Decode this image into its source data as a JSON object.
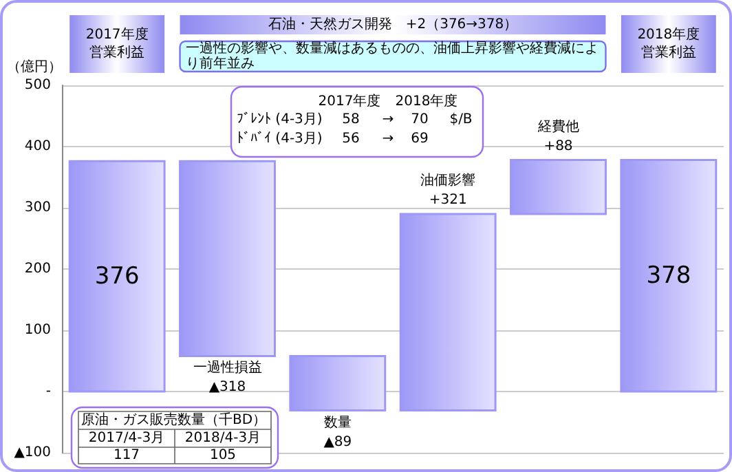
{
  "chart_data": {
    "type": "bar",
    "title": "石油・天然ガス開発　+2（376→378）",
    "subtitle": "一過性の影響や、数量減はあるものの、油価上昇影響や経費減により前年並み",
    "ylabel": "（億円）",
    "categories": [
      "2017年度営業利益",
      "一過性損益",
      "数量",
      "油価影響",
      "経費他",
      "2018年度営業利益"
    ],
    "values": [
      376,
      -318,
      -89,
      321,
      88,
      378
    ],
    "base": [
      0,
      376,
      58,
      -31,
      290,
      0
    ],
    "value_labels": [
      "376",
      "▲318",
      "▲89",
      "+321",
      "+88",
      "378"
    ],
    "color": "#9d98f6",
    "ylim": [
      -100,
      500
    ],
    "yticks": [
      {
        "value": -100,
        "label": "▲100"
      },
      {
        "value": 0,
        "label": "-"
      },
      100,
      200,
      300,
      400,
      500
    ],
    "grid": "y",
    "annotations": [
      "2017年度",
      "2018年度",
      "ﾌﾞﾚﾝﾄ (4-3月)",
      "58",
      "→",
      "70",
      "$/B",
      "ﾄﾞﾊﾞｲ (4-3月)",
      "56",
      "→",
      "69",
      "原油・ガス販売数量（千BD）",
      "2017/4-3月",
      "2018/4-3月",
      "117",
      "105"
    ]
  }
}
